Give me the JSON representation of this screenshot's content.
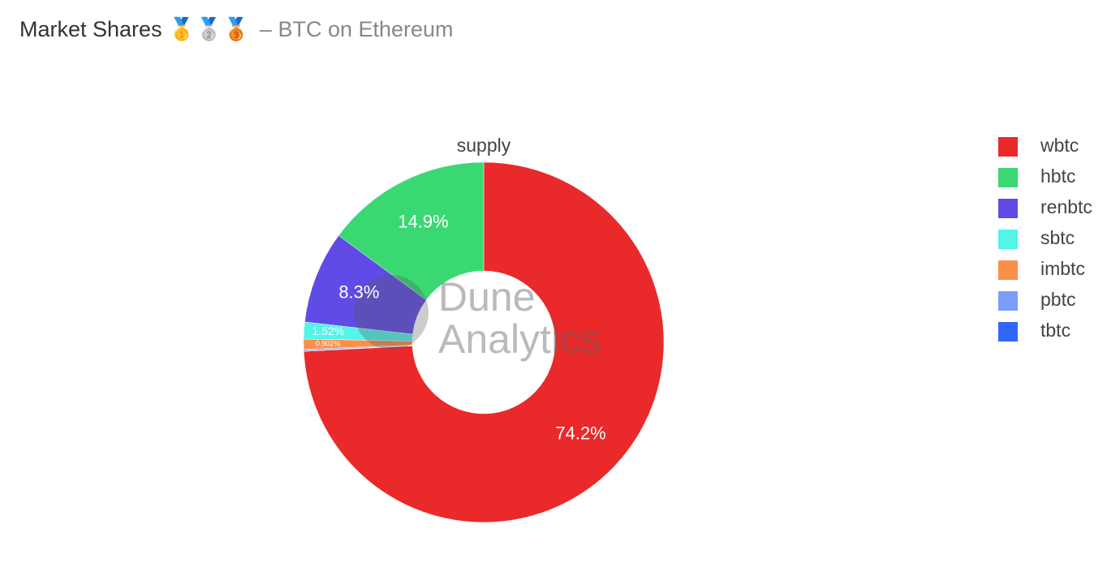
{
  "chart_data": {
    "type": "pie",
    "title": "Market Shares 🥇🥈🥉",
    "subtitle": "– BTC on Ethereum",
    "pie_label": "supply",
    "watermark": [
      "Dune",
      "Analytics"
    ],
    "hole": true,
    "direction": "counterclockwise",
    "legend_position": "top-right",
    "series": [
      {
        "name": "wbtc",
        "color": "#e9292a",
        "values": [
          74.2
        ],
        "value_labels": [
          "74.2%"
        ]
      },
      {
        "name": "hbtc",
        "color": "#3ad873",
        "values": [
          14.9
        ],
        "value_labels": [
          "14.9%"
        ]
      },
      {
        "name": "renbtc",
        "color": "#5f4ce6",
        "values": [
          8.3
        ],
        "value_labels": [
          "8.3%"
        ]
      },
      {
        "name": "sbtc",
        "color": "#52f5ea",
        "values": [
          1.52
        ],
        "value_labels": [
          "1.52%"
        ]
      },
      {
        "name": "imbtc",
        "color": "#fb8e48",
        "values": [
          0.902
        ],
        "value_labels": [
          "0.902%"
        ]
      },
      {
        "name": "pbtc",
        "color": "#7d9cf9",
        "values": [
          0.12
        ],
        "value_labels": [
          null
        ]
      },
      {
        "name": "tbtc",
        "color": "#2f67fa",
        "values": [
          0.058
        ],
        "value_labels": [
          null
        ]
      }
    ]
  }
}
